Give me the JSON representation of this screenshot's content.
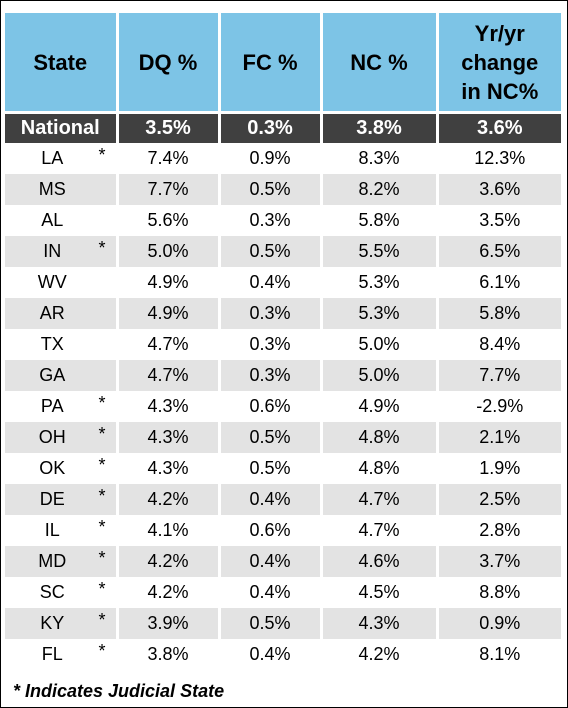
{
  "headers": [
    "State",
    "DQ %",
    "FC %",
    "NC %",
    "Yr/yr change in NC%"
  ],
  "header_lines": {
    "state": "State",
    "dq": "DQ %",
    "fc": "FC %",
    "nc": "NC %",
    "yoy_1": "Yr/yr",
    "yoy_2": "change",
    "yoy_3": "in NC%"
  },
  "national": {
    "label": "National",
    "dq": "3.5%",
    "fc": "0.3%",
    "nc": "3.8%",
    "yoy": "3.6%"
  },
  "rows": [
    {
      "state": "LA",
      "star": "*",
      "dq": "7.4%",
      "fc": "0.9%",
      "nc": "8.3%",
      "yoy": "12.3%"
    },
    {
      "state": "MS",
      "star": "",
      "dq": "7.7%",
      "fc": "0.5%",
      "nc": "8.2%",
      "yoy": "3.6%"
    },
    {
      "state": "AL",
      "star": "",
      "dq": "5.6%",
      "fc": "0.3%",
      "nc": "5.8%",
      "yoy": "3.5%"
    },
    {
      "state": "IN",
      "star": "*",
      "dq": "5.0%",
      "fc": "0.5%",
      "nc": "5.5%",
      "yoy": "6.5%"
    },
    {
      "state": "WV",
      "star": "",
      "dq": "4.9%",
      "fc": "0.4%",
      "nc": "5.3%",
      "yoy": "6.1%"
    },
    {
      "state": "AR",
      "star": "",
      "dq": "4.9%",
      "fc": "0.3%",
      "nc": "5.3%",
      "yoy": "5.8%"
    },
    {
      "state": "TX",
      "star": "",
      "dq": "4.7%",
      "fc": "0.3%",
      "nc": "5.0%",
      "yoy": "8.4%"
    },
    {
      "state": "GA",
      "star": "",
      "dq": "4.7%",
      "fc": "0.3%",
      "nc": "5.0%",
      "yoy": "7.7%"
    },
    {
      "state": "PA",
      "star": "*",
      "dq": "4.3%",
      "fc": "0.6%",
      "nc": "4.9%",
      "yoy": "-2.9%"
    },
    {
      "state": "OH",
      "star": "*",
      "dq": "4.3%",
      "fc": "0.5%",
      "nc": "4.8%",
      "yoy": "2.1%"
    },
    {
      "state": "OK",
      "star": "*",
      "dq": "4.3%",
      "fc": "0.5%",
      "nc": "4.8%",
      "yoy": "1.9%"
    },
    {
      "state": "DE",
      "star": "*",
      "dq": "4.2%",
      "fc": "0.4%",
      "nc": "4.7%",
      "yoy": "2.5%"
    },
    {
      "state": "IL",
      "star": "*",
      "dq": "4.1%",
      "fc": "0.6%",
      "nc": "4.7%",
      "yoy": "2.8%"
    },
    {
      "state": "MD",
      "star": "*",
      "dq": "4.2%",
      "fc": "0.4%",
      "nc": "4.6%",
      "yoy": "3.7%"
    },
    {
      "state": "SC",
      "star": "*",
      "dq": "4.2%",
      "fc": "0.4%",
      "nc": "4.5%",
      "yoy": "8.8%"
    },
    {
      "state": "KY",
      "star": "*",
      "dq": "3.9%",
      "fc": "0.5%",
      "nc": "4.3%",
      "yoy": "0.9%"
    },
    {
      "state": "FL",
      "star": "*",
      "dq": "3.8%",
      "fc": "0.4%",
      "nc": "4.2%",
      "yoy": "8.1%"
    }
  ],
  "footnote": "* Indicates Judicial State",
  "colors": {
    "header_bg": "#7dc4e6",
    "national_bg": "#404040",
    "shade_bg": "#e3e3e3"
  }
}
